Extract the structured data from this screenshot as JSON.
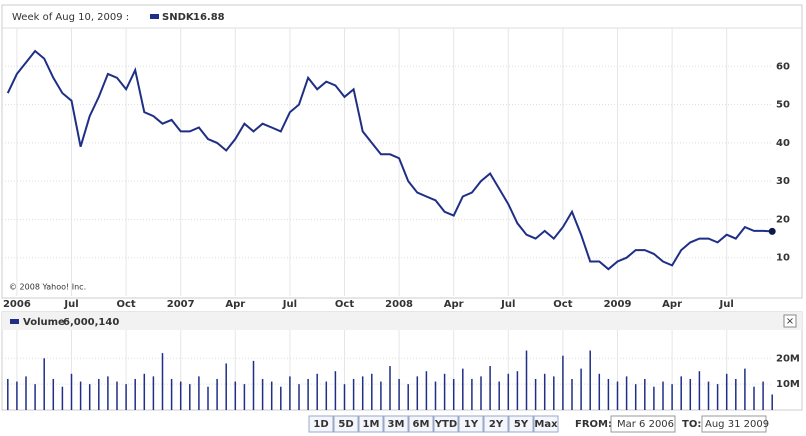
{
  "header": {
    "week_label": "Week of Aug 10, 2009 :"
  },
  "chart_data": [
    {
      "type": "line",
      "series": [
        {
          "name": "SNDK",
          "color": "#1f2f86",
          "values": [
            53,
            58,
            61,
            64,
            62,
            57,
            53,
            51,
            39,
            47,
            52,
            58,
            57,
            54,
            59,
            48,
            47,
            45,
            46,
            43,
            43,
            44,
            41,
            40,
            38,
            41,
            45,
            43,
            45,
            44,
            43,
            48,
            50,
            57,
            54,
            56,
            55,
            52,
            54,
            43,
            40,
            37,
            37,
            36,
            30,
            27,
            26,
            25,
            22,
            21,
            26,
            27,
            30,
            32,
            28,
            24,
            19,
            16,
            15,
            17,
            15,
            18,
            22,
            16,
            9,
            9,
            7,
            9,
            10,
            12,
            12,
            11,
            9,
            8,
            12,
            14,
            15,
            15,
            14,
            16,
            15,
            18,
            17,
            17,
            16.88
          ]
        }
      ],
      "categories": [
        null,
        "2006",
        null,
        null,
        null,
        null,
        null,
        "Jul",
        null,
        null,
        null,
        null,
        null,
        "Oct",
        null,
        null,
        null,
        null,
        null,
        "2007",
        null,
        null,
        null,
        null,
        null,
        "Apr",
        null,
        null,
        null,
        null,
        null,
        "Jul",
        null,
        null,
        null,
        null,
        null,
        "Oct",
        null,
        null,
        null,
        null,
        null,
        "2008",
        null,
        null,
        null,
        null,
        null,
        "Apr",
        null,
        null,
        null,
        null,
        null,
        "Jul",
        null,
        null,
        null,
        null,
        null,
        "Oct",
        null,
        null,
        null,
        null,
        null,
        "2009",
        null,
        null,
        null,
        null,
        null,
        "Apr",
        null,
        null,
        null,
        null,
        null,
        "Jul",
        null,
        null,
        null,
        null,
        null
      ],
      "ylim": [
        0,
        70
      ],
      "yticks": [
        10,
        20,
        30,
        40,
        50,
        60
      ],
      "grid": true,
      "annotation": "© 2008 Yahoo! Inc."
    },
    {
      "type": "bar",
      "series": [
        {
          "name": "Volume",
          "color": "#1f2f86",
          "last_label": "6,000,140",
          "values": [
            12000000,
            11000000,
            13000000,
            10000000,
            20000000,
            12000000,
            9000000,
            14000000,
            11000000,
            10000000,
            12000000,
            13000000,
            11000000,
            10000000,
            12000000,
            14000000,
            13000000,
            22000000,
            12000000,
            11000000,
            10000000,
            13000000,
            9000000,
            12000000,
            18000000,
            11000000,
            10000000,
            19000000,
            12000000,
            11000000,
            9000000,
            13000000,
            10000000,
            12000000,
            14000000,
            11000000,
            15000000,
            10000000,
            12000000,
            13000000,
            14000000,
            11000000,
            17000000,
            12000000,
            10000000,
            13000000,
            15000000,
            11000000,
            14000000,
            12000000,
            16000000,
            12000000,
            13000000,
            17000000,
            11000000,
            14000000,
            15000000,
            23000000,
            12000000,
            14000000,
            13000000,
            21000000,
            12000000,
            16000000,
            23000000,
            14000000,
            12000000,
            11000000,
            13000000,
            10000000,
            12000000,
            9000000,
            11000000,
            10000000,
            13000000,
            12000000,
            15000000,
            11000000,
            10000000,
            14000000,
            12000000,
            16000000,
            9000000,
            11000000,
            6000140
          ]
        }
      ],
      "ylim": [
        0,
        29000000
      ],
      "yticks": [
        {
          "value": 10000000,
          "label": "10M"
        },
        {
          "value": 20000000,
          "label": "20M"
        }
      ],
      "grid": true
    }
  ],
  "controls": {
    "ranges": [
      "1D",
      "5D",
      "1M",
      "3M",
      "6M",
      "YTD",
      "1Y",
      "2Y",
      "5Y",
      "Max"
    ],
    "from_label": "FROM:",
    "from_value": "Mar 6 2006",
    "to_label": "TO:",
    "to_value": "Aug 31 2009",
    "close": "×"
  }
}
